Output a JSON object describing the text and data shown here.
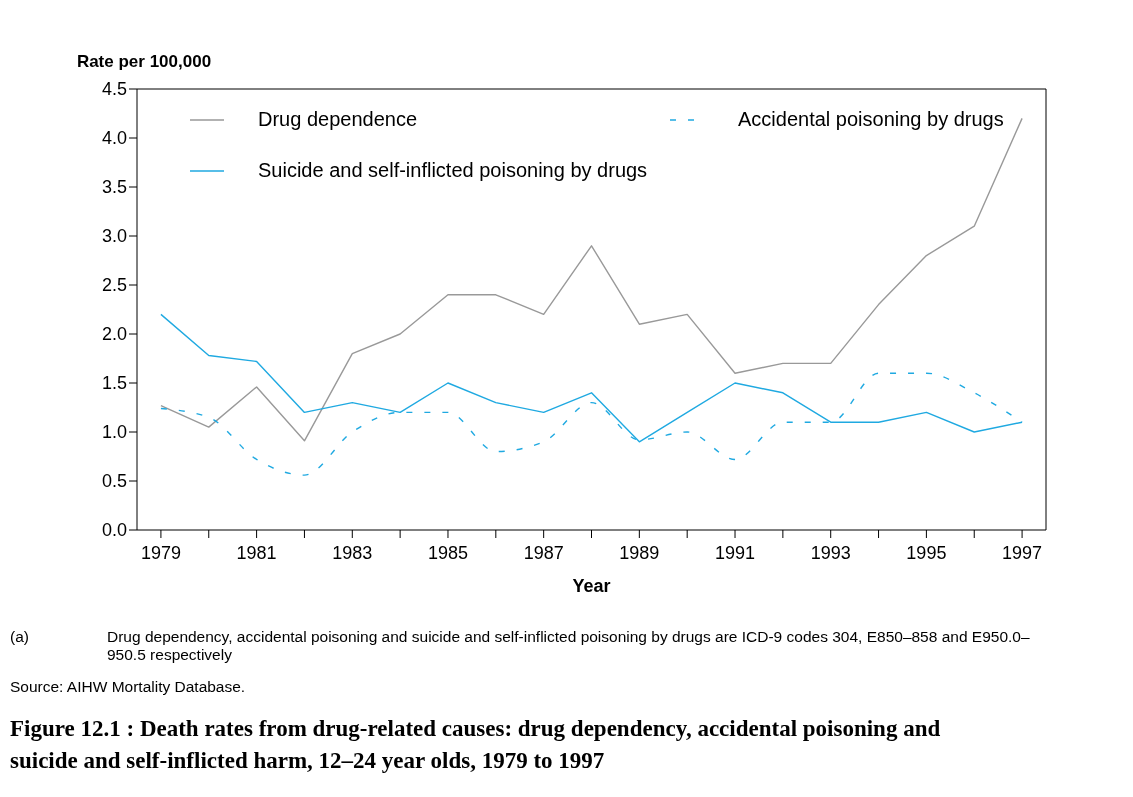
{
  "chart_data": {
    "type": "line",
    "title": "Figure 12.1 : Death rates from drug-related causes: drug dependency, accidental poisoning and suicide and self-inflicted harm, 12–24 year olds, 1979 to 1997",
    "xlabel": "Year",
    "ylabel": "Rate per 100,000",
    "annotations": [
      "(a)",
      "Drug dependency, accidental poisoning and suicide and self-inflicted poisoning by drugs are ICD-9 codes 304, E850–858 and E950.0–950.5 respectively",
      "Source: AIHW Mortality Database."
    ],
    "x": [
      1979,
      1980,
      1981,
      1982,
      1983,
      1984,
      1985,
      1986,
      1987,
      1988,
      1989,
      1990,
      1991,
      1992,
      1993,
      1994,
      1995,
      1996,
      1997
    ],
    "series": [
      {
        "name": "Drug dependence",
        "color": "#999999",
        "line_style": "solid",
        "values": [
          1.27,
          1.05,
          1.46,
          0.91,
          1.8,
          2.0,
          2.4,
          2.4,
          2.2,
          2.9,
          2.1,
          2.2,
          1.6,
          1.7,
          1.7,
          2.3,
          2.8,
          3.1,
          4.2
        ]
      },
      {
        "name": "Accidental poisoning by drugs",
        "color": "#1fa9e1",
        "line_style": "dashed",
        "values": [
          1.24,
          1.15,
          0.72,
          0.56,
          1.0,
          1.2,
          1.2,
          0.8,
          0.9,
          1.3,
          0.92,
          1.0,
          0.72,
          1.1,
          1.1,
          1.6,
          1.6,
          1.4,
          1.1
        ]
      },
      {
        "name": "Suicide and self-inflicted poisoning by drugs",
        "color": "#1fa9e1",
        "line_style": "solid",
        "values": [
          2.2,
          1.78,
          1.72,
          1.2,
          1.3,
          1.2,
          1.5,
          1.3,
          1.2,
          1.4,
          0.9,
          1.2,
          1.5,
          1.4,
          1.1,
          1.1,
          1.2,
          1.0,
          1.1
        ]
      }
    ],
    "xlim": [
      1978.5,
      1997.5
    ],
    "xticks": [
      1979,
      {
        "value": 1980,
        "label": null
      },
      1981,
      {
        "value": 1982,
        "label": null
      },
      1983,
      {
        "value": 1984,
        "label": null
      },
      1985,
      {
        "value": 1986,
        "label": null
      },
      1987,
      {
        "value": 1988,
        "label": null
      },
      1989,
      {
        "value": 1990,
        "label": null
      },
      1991,
      {
        "value": 1992,
        "label": null
      },
      1993,
      {
        "value": 1994,
        "label": null
      },
      1995,
      {
        "value": 1996,
        "label": null
      },
      1997
    ],
    "ylim": [
      0,
      4.5
    ],
    "yticks": [
      {
        "value": 0,
        "label": "0.0"
      },
      {
        "value": 0.5,
        "label": "0.5"
      },
      {
        "value": 1,
        "label": "1.0"
      },
      {
        "value": 1.5,
        "label": "1.5"
      },
      {
        "value": 2,
        "label": "2.0"
      },
      {
        "value": 2.5,
        "label": "2.5"
      },
      {
        "value": 3,
        "label": "3.0"
      },
      {
        "value": 3.5,
        "label": "3.5"
      },
      {
        "value": 4,
        "label": "4.0"
      },
      {
        "value": 4.5,
        "label": "4.5"
      }
    ],
    "grid": false,
    "legend": "top",
    "marker": "none"
  }
}
